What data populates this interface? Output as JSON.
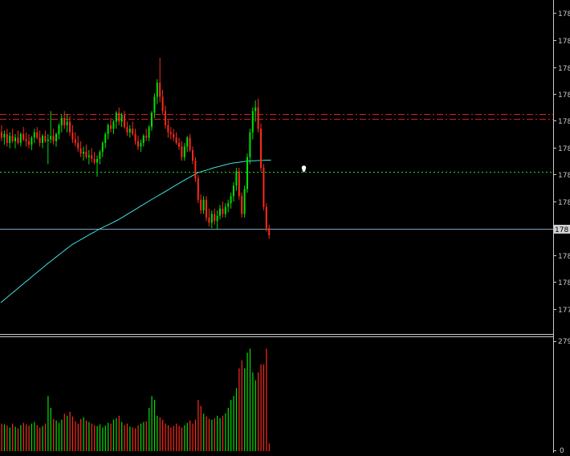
{
  "colors": {
    "background": "#000000",
    "bull": "#00e000",
    "bear": "#ff2a1a",
    "frame": "#c8c8c8",
    "label": "#c8c8c8",
    "ma": "#40e0e0",
    "bid_line": "#7fa0c0",
    "level_dotted": "#22dd22",
    "level_dashdot": "#cc2222",
    "price_tag_bg": "#d0d0d0",
    "price_tag_text": "#000000"
  },
  "price_axis": {
    "labels": [
      "178",
      "178",
      "178",
      "178",
      "178",
      "178",
      "178",
      "178",
      "178",
      "178",
      "178",
      "177"
    ]
  },
  "current_price_tag": "178",
  "volume_axis": {
    "max_label": "279",
    "min_label": "0"
  },
  "chart_data": [
    {
      "type": "candlestick",
      "panel": "price",
      "ylim": [
        0,
        100
      ],
      "candles": [
        {
          "o": 58.0,
          "h": 62.0,
          "l": 53.0,
          "c": 55.0
        },
        {
          "o": 55.0,
          "h": 59.0,
          "l": 51.0,
          "c": 57.0
        },
        {
          "o": 57.0,
          "h": 60.0,
          "l": 50.0,
          "c": 52.0
        },
        {
          "o": 52.0,
          "h": 58.0,
          "l": 49.0,
          "c": 56.0
        },
        {
          "o": 56.0,
          "h": 60.0,
          "l": 52.0,
          "c": 53.0
        },
        {
          "o": 53.0,
          "h": 57.0,
          "l": 49.0,
          "c": 55.0
        },
        {
          "o": 55.0,
          "h": 59.0,
          "l": 51.0,
          "c": 52.0
        },
        {
          "o": 52.0,
          "h": 58.0,
          "l": 50.0,
          "c": 57.0
        },
        {
          "o": 57.0,
          "h": 61.0,
          "l": 53.0,
          "c": 54.0
        },
        {
          "o": 54.0,
          "h": 58.0,
          "l": 50.0,
          "c": 53.0
        },
        {
          "o": 53.0,
          "h": 57.0,
          "l": 49.0,
          "c": 51.0
        },
        {
          "o": 51.0,
          "h": 56.0,
          "l": 48.0,
          "c": 55.0
        },
        {
          "o": 55.0,
          "h": 60.0,
          "l": 52.0,
          "c": 58.0
        },
        {
          "o": 58.0,
          "h": 61.0,
          "l": 54.0,
          "c": 55.0
        },
        {
          "o": 55.0,
          "h": 59.0,
          "l": 50.0,
          "c": 52.0
        },
        {
          "o": 52.0,
          "h": 57.0,
          "l": 49.0,
          "c": 56.0
        },
        {
          "o": 56.0,
          "h": 59.0,
          "l": 52.0,
          "c": 53.0
        },
        {
          "o": 53.0,
          "h": 57.0,
          "l": 40.0,
          "c": 54.0
        },
        {
          "o": 54.0,
          "h": 70.0,
          "l": 52.0,
          "c": 56.0
        },
        {
          "o": 56.0,
          "h": 60.0,
          "l": 51.0,
          "c": 53.0
        },
        {
          "o": 53.0,
          "h": 58.0,
          "l": 50.0,
          "c": 57.0
        },
        {
          "o": 57.0,
          "h": 63.0,
          "l": 54.0,
          "c": 62.0
        },
        {
          "o": 62.0,
          "h": 68.0,
          "l": 58.0,
          "c": 66.0
        },
        {
          "o": 66.0,
          "h": 70.0,
          "l": 60.0,
          "c": 62.0
        },
        {
          "o": 62.0,
          "h": 68.0,
          "l": 58.0,
          "c": 64.0
        },
        {
          "o": 64.0,
          "h": 67.0,
          "l": 56.0,
          "c": 58.0
        },
        {
          "o": 58.0,
          "h": 62.0,
          "l": 52.0,
          "c": 54.0
        },
        {
          "o": 54.0,
          "h": 58.0,
          "l": 50.0,
          "c": 52.0
        },
        {
          "o": 52.0,
          "h": 56.0,
          "l": 47.0,
          "c": 49.0
        },
        {
          "o": 49.0,
          "h": 53.0,
          "l": 44.0,
          "c": 46.0
        },
        {
          "o": 46.0,
          "h": 50.0,
          "l": 42.0,
          "c": 47.0
        },
        {
          "o": 47.0,
          "h": 51.0,
          "l": 43.0,
          "c": 44.0
        },
        {
          "o": 44.0,
          "h": 48.0,
          "l": 40.0,
          "c": 45.0
        },
        {
          "o": 45.0,
          "h": 49.0,
          "l": 41.0,
          "c": 43.0
        },
        {
          "o": 43.0,
          "h": 47.0,
          "l": 40.0,
          "c": 41.0
        },
        {
          "o": 41.0,
          "h": 45.0,
          "l": 33.0,
          "c": 43.0
        },
        {
          "o": 43.0,
          "h": 48.0,
          "l": 40.0,
          "c": 47.0
        },
        {
          "o": 47.0,
          "h": 53.0,
          "l": 44.0,
          "c": 52.0
        },
        {
          "o": 52.0,
          "h": 58.0,
          "l": 49.0,
          "c": 57.0
        },
        {
          "o": 57.0,
          "h": 63.0,
          "l": 54.0,
          "c": 62.0
        },
        {
          "o": 62.0,
          "h": 66.0,
          "l": 58.0,
          "c": 60.0
        },
        {
          "o": 60.0,
          "h": 65.0,
          "l": 57.0,
          "c": 64.0
        },
        {
          "o": 64.0,
          "h": 70.0,
          "l": 60.0,
          "c": 69.0
        },
        {
          "o": 69.0,
          "h": 72.0,
          "l": 62.0,
          "c": 64.0
        },
        {
          "o": 64.0,
          "h": 69.0,
          "l": 61.0,
          "c": 68.0
        },
        {
          "o": 68.0,
          "h": 70.0,
          "l": 60.0,
          "c": 61.0
        },
        {
          "o": 61.0,
          "h": 64.0,
          "l": 56.0,
          "c": 58.0
        },
        {
          "o": 58.0,
          "h": 62.0,
          "l": 55.0,
          "c": 60.0
        },
        {
          "o": 60.0,
          "h": 64.0,
          "l": 56.0,
          "c": 57.0
        },
        {
          "o": 57.0,
          "h": 60.0,
          "l": 51.0,
          "c": 53.0
        },
        {
          "o": 53.0,
          "h": 56.0,
          "l": 48.0,
          "c": 50.0
        },
        {
          "o": 50.0,
          "h": 54.0,
          "l": 47.0,
          "c": 52.0
        },
        {
          "o": 52.0,
          "h": 57.0,
          "l": 50.0,
          "c": 56.0
        },
        {
          "o": 56.0,
          "h": 60.0,
          "l": 53.0,
          "c": 55.0
        },
        {
          "o": 55.0,
          "h": 62.0,
          "l": 53.0,
          "c": 61.0
        },
        {
          "o": 61.0,
          "h": 70.0,
          "l": 59.0,
          "c": 69.0
        },
        {
          "o": 69.0,
          "h": 80.0,
          "l": 66.0,
          "c": 78.0
        },
        {
          "o": 78.0,
          "h": 88.0,
          "l": 74.0,
          "c": 86.0
        },
        {
          "o": 86.0,
          "h": 100.0,
          "l": 75.0,
          "c": 78.0
        },
        {
          "o": 78.0,
          "h": 82.0,
          "l": 68.0,
          "c": 70.0
        },
        {
          "o": 70.0,
          "h": 73.0,
          "l": 60.0,
          "c": 62.0
        },
        {
          "o": 62.0,
          "h": 65.0,
          "l": 55.0,
          "c": 58.0
        },
        {
          "o": 58.0,
          "h": 61.0,
          "l": 54.0,
          "c": 57.0
        },
        {
          "o": 57.0,
          "h": 60.0,
          "l": 53.0,
          "c": 55.0
        },
        {
          "o": 55.0,
          "h": 58.0,
          "l": 51.0,
          "c": 52.0
        },
        {
          "o": 52.0,
          "h": 55.0,
          "l": 48.0,
          "c": 50.0
        },
        {
          "o": 50.0,
          "h": 53.0,
          "l": 42.0,
          "c": 44.0
        },
        {
          "o": 44.0,
          "h": 52.0,
          "l": 42.0,
          "c": 50.0
        },
        {
          "o": 50.0,
          "h": 56.0,
          "l": 47.0,
          "c": 55.0
        },
        {
          "o": 55.0,
          "h": 57.0,
          "l": 47.0,
          "c": 48.0
        },
        {
          "o": 48.0,
          "h": 50.0,
          "l": 40.0,
          "c": 42.0
        },
        {
          "o": 42.0,
          "h": 44.0,
          "l": 30.0,
          "c": 32.0
        },
        {
          "o": 32.0,
          "h": 34.0,
          "l": 18.0,
          "c": 20.0
        },
        {
          "o": 20.0,
          "h": 23.0,
          "l": 12.0,
          "c": 14.0
        },
        {
          "o": 14.0,
          "h": 22.0,
          "l": 12.0,
          "c": 20.0
        },
        {
          "o": 20.0,
          "h": 22.0,
          "l": 8.0,
          "c": 10.0
        },
        {
          "o": 10.0,
          "h": 15.0,
          "l": 5.0,
          "c": 7.0
        },
        {
          "o": 7.0,
          "h": 14.0,
          "l": 4.0,
          "c": 12.0
        },
        {
          "o": 12.0,
          "h": 15.0,
          "l": 6.0,
          "c": 8.0
        },
        {
          "o": 8.0,
          "h": 14.0,
          "l": 3.0,
          "c": 11.0
        },
        {
          "o": 11.0,
          "h": 17.0,
          "l": 9.0,
          "c": 15.0
        },
        {
          "o": 15.0,
          "h": 19.0,
          "l": 10.0,
          "c": 12.0
        },
        {
          "o": 12.0,
          "h": 18.0,
          "l": 10.0,
          "c": 16.0
        },
        {
          "o": 16.0,
          "h": 20.0,
          "l": 13.0,
          "c": 18.0
        },
        {
          "o": 18.0,
          "h": 24.0,
          "l": 15.0,
          "c": 22.0
        },
        {
          "o": 22.0,
          "h": 30.0,
          "l": 19.0,
          "c": 28.0
        },
        {
          "o": 28.0,
          "h": 38.0,
          "l": 25.0,
          "c": 36.0
        },
        {
          "o": 36.0,
          "h": 38.0,
          "l": 20.0,
          "c": 22.0
        },
        {
          "o": 22.0,
          "h": 24.0,
          "l": 10.0,
          "c": 12.0
        },
        {
          "o": 12.0,
          "h": 28.0,
          "l": 10.0,
          "c": 26.0
        },
        {
          "o": 26.0,
          "h": 46.0,
          "l": 24.0,
          "c": 44.0
        },
        {
          "o": 44.0,
          "h": 60.0,
          "l": 40.0,
          "c": 58.0
        },
        {
          "o": 58.0,
          "h": 72.0,
          "l": 54.0,
          "c": 70.0
        },
        {
          "o": 70.0,
          "h": 76.0,
          "l": 64.0,
          "c": 72.0
        },
        {
          "o": 72.0,
          "h": 77.0,
          "l": 58.0,
          "c": 60.0
        },
        {
          "o": 60.0,
          "h": 63.0,
          "l": 36.0,
          "c": 38.0
        },
        {
          "o": 38.0,
          "h": 40.0,
          "l": 14.0,
          "c": 16.0
        },
        {
          "o": 16.0,
          "h": 18.0,
          "l": 2.0,
          "c": 4.0
        },
        {
          "o": 4.0,
          "h": 6.0,
          "l": -2.0,
          "c": 0.0
        }
      ],
      "moving_average": [
        -38.0,
        -36.7,
        -35.4,
        -34.1,
        -32.8,
        -31.6,
        -30.3,
        -29.0,
        -27.7,
        -26.4,
        -25.2,
        -23.9,
        -22.6,
        -21.3,
        -20.0,
        -18.8,
        -17.5,
        -16.2,
        -15.0,
        -13.8,
        -12.6,
        -11.4,
        -10.2,
        -9.0,
        -7.8,
        -6.6,
        -5.4,
        -4.5,
        -3.6,
        -2.7,
        -1.9,
        -1.0,
        -0.1,
        0.8,
        1.6,
        2.5,
        3.4,
        4.1,
        4.9,
        5.6,
        6.4,
        7.1,
        7.9,
        8.7,
        9.6,
        10.5,
        11.5,
        12.4,
        13.3,
        14.3,
        15.2,
        16.2,
        17.1,
        18.0,
        19.0,
        19.9,
        20.8,
        21.7,
        22.6,
        23.5,
        24.4,
        25.3,
        26.2,
        27.2,
        28.1,
        29.0,
        29.9,
        30.8,
        31.7,
        32.5,
        33.4,
        34.2,
        35.1,
        35.6,
        36.1,
        36.5,
        37.0,
        37.5,
        38.0,
        38.4,
        38.8,
        39.2,
        39.6,
        40.0,
        40.4,
        40.7,
        40.9,
        41.1,
        41.3,
        41.5,
        41.7,
        41.8,
        41.9,
        42.0,
        42.1,
        42.2,
        42.2,
        42.3,
        42.3,
        42.3
      ]
    },
    {
      "type": "bar",
      "panel": "volume",
      "ylim": [
        0,
        279
      ],
      "values": [
        70,
        68,
        65,
        60,
        70,
        62,
        58,
        66,
        72,
        68,
        65,
        70,
        74,
        66,
        60,
        64,
        70,
        140,
        110,
        82,
        78,
        72,
        80,
        95,
        90,
        100,
        88,
        76,
        70,
        82,
        86,
        78,
        74,
        70,
        66,
        64,
        68,
        60,
        65,
        72,
        70,
        80,
        84,
        90,
        74,
        66,
        70,
        62,
        60,
        58,
        66,
        70,
        74,
        76,
        110,
        140,
        130,
        90,
        86,
        80,
        70,
        66,
        60,
        64,
        70,
        64,
        60,
        66,
        72,
        78,
        70,
        80,
        130,
        115,
        95,
        88,
        82,
        80,
        84,
        90,
        84,
        90,
        96,
        110,
        130,
        140,
        160,
        210,
        230,
        210,
        250,
        260,
        200,
        180,
        200,
        220,
        220,
        260,
        20
      ]
    }
  ]
}
